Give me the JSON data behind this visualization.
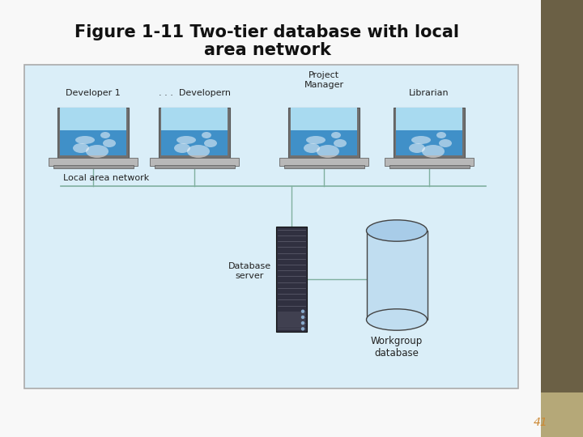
{
  "title_line1": "Figure 1-11 Two-tier database with local",
  "title_line2": "area network",
  "title_fontsize": 15,
  "title_fontweight": "bold",
  "background_color": "#f0f0f0",
  "diagram_bg_color": "#daeef8",
  "diagram_border_color": "#aaaaaa",
  "right_strip_color": "#6b6045",
  "right_strip_light_color": "#b5a878",
  "page_number": "41",
  "page_number_color": "#cc8833",
  "network_label": "Local area network",
  "server_label": "Database\nserver",
  "db_label": "Workgroup\ndatabase",
  "line_color": "#80b0a0",
  "text_color": "#222222",
  "laptop_screen_color_top": "#7ecbee",
  "laptop_screen_color_bot": "#3090c0",
  "laptop_body_color": "#b0b0b0",
  "laptop_base_color": "#c8c8c8",
  "server_dark": "#303040",
  "server_mid": "#484858",
  "db_body_color": "#c0ddf0",
  "db_top_color": "#a8cce8",
  "dev1_label": "Developer 1",
  "devn_label": ". . .  Developern",
  "pm_label": "Project\nManager",
  "lib_label": "Librarian"
}
